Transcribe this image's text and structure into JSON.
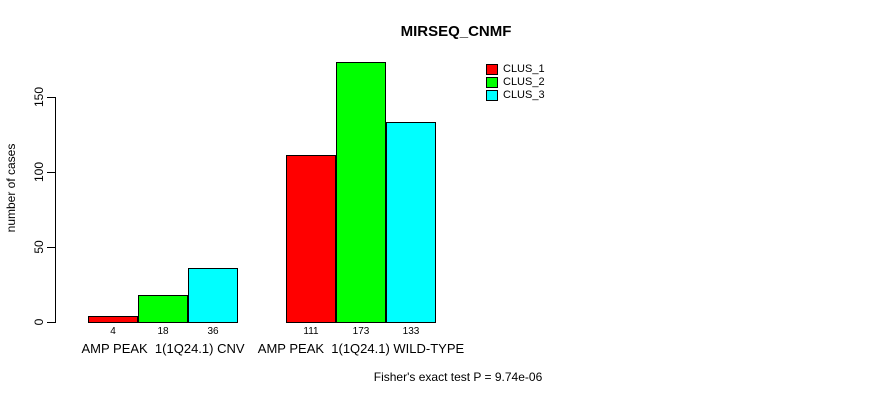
{
  "chart_data": {
    "type": "bar",
    "title": "MIRSEQ_CNMF",
    "ylabel": "number of cases",
    "xlabel": "",
    "caption": "Fisher's exact test P = 9.74e-06",
    "ylim": [
      0,
      175
    ],
    "yticks": [
      0,
      50,
      100,
      150
    ],
    "grid": false,
    "legend_position": "top-right-inside",
    "bar_value_labels": true,
    "categories": [
      "AMP PEAK  1(1Q24.1) CNV",
      "AMP PEAK  1(1Q24.1) WILD-TYPE"
    ],
    "series": [
      {
        "name": "CLUS_1",
        "color": "#FF0000",
        "values": [
          4,
          111
        ]
      },
      {
        "name": "CLUS_2",
        "color": "#00FF00",
        "values": [
          18,
          173
        ]
      },
      {
        "name": "CLUS_3",
        "color": "#00FFFF",
        "values": [
          36,
          133
        ]
      }
    ],
    "colors": {
      "background": "#FFFFFF",
      "axis": "#000000",
      "text": "#000000"
    }
  }
}
